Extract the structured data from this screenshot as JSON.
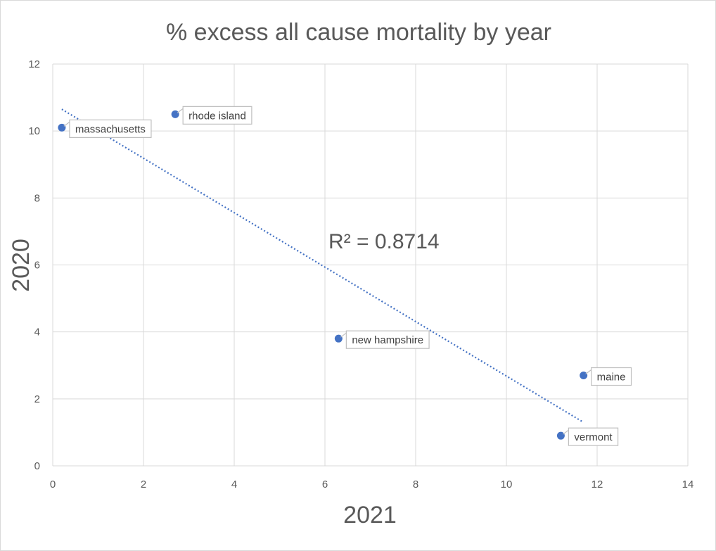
{
  "chart_data": {
    "type": "scatter",
    "title": "% excess all cause mortality by year",
    "xlabel": "2021",
    "ylabel": "2020",
    "xlim": [
      0,
      14
    ],
    "ylim": [
      0,
      12
    ],
    "xticks": [
      0,
      2,
      4,
      6,
      8,
      10,
      12,
      14
    ],
    "yticks": [
      0,
      2,
      4,
      6,
      8,
      10,
      12
    ],
    "grid": true,
    "points": [
      {
        "label": "massachusetts",
        "x": 0.2,
        "y": 10.1
      },
      {
        "label": "rhode island",
        "x": 2.7,
        "y": 10.5
      },
      {
        "label": "new hampshire",
        "x": 6.3,
        "y": 3.8
      },
      {
        "label": "maine",
        "x": 11.7,
        "y": 2.7
      },
      {
        "label": "vermont",
        "x": 11.2,
        "y": 0.9
      }
    ],
    "trendline": {
      "type": "linear",
      "style": "dotted",
      "from": {
        "x": 0.2,
        "y": 10.65
      },
      "to": {
        "x": 11.7,
        "y": 1.3
      },
      "r_squared_label": "R² = 0.8714"
    },
    "colors": {
      "marker": "#4472c4",
      "trendline": "#4472c4",
      "grid": "#d9d9d9",
      "text": "#595959"
    }
  }
}
